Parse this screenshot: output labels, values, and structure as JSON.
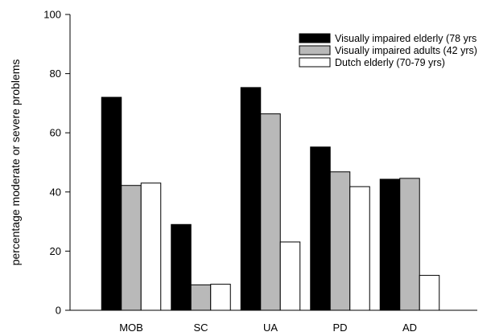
{
  "chart_data": {
    "type": "bar",
    "title": "",
    "xlabel": "",
    "ylabel": "percentage moderate or severe problems",
    "ylim": [
      0,
      100
    ],
    "yticks": [
      0,
      20,
      40,
      60,
      80,
      100
    ],
    "grid": false,
    "legend_position": "top-right",
    "categories": [
      "MOB",
      "SC",
      "UA",
      "PD",
      "AD"
    ],
    "series": [
      {
        "name": "Visually impaired elderly (78 yrs",
        "color": "#000000",
        "values": [
          72.0,
          29.0,
          75.3,
          55.2,
          44.3
        ]
      },
      {
        "name": "Visually impaired adults (42 yrs)",
        "color": "#b9b9b9",
        "values": [
          42.2,
          8.6,
          66.4,
          46.8,
          44.6
        ]
      },
      {
        "name": "Dutch elderly (70-79 yrs)",
        "color": "#ffffff",
        "values": [
          43.0,
          8.8,
          23.1,
          41.8,
          11.8
        ]
      }
    ]
  }
}
